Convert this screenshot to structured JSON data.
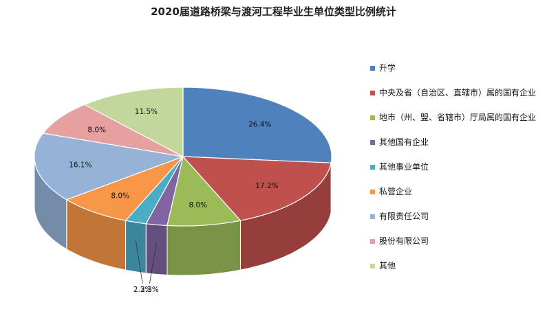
{
  "chart_data": {
    "type": "pie",
    "title": "2020届道路桥梁与渡河工程毕业生单位类型比例统计",
    "legend_position": "right",
    "style": "3d",
    "slices": [
      {
        "name": "升学",
        "value": 26.4,
        "label": "26.4%",
        "color": "#4F81BD"
      },
      {
        "name": "中央及省（自治区、直辖市）属的国有企业",
        "value": 17.2,
        "label": "17.2%",
        "color": "#C0504D"
      },
      {
        "name": "地市（州、盟、省辖市）厅局属的国有企业",
        "value": 8.0,
        "label": "8.0%",
        "color": "#9BBB59"
      },
      {
        "name": "其他国有企业",
        "value": 2.3,
        "label": "2.3%",
        "color": "#8064A2"
      },
      {
        "name": "其他事业单位",
        "value": 2.3,
        "label": "2.3%",
        "color": "#4BACC6"
      },
      {
        "name": "私营企业",
        "value": 8.0,
        "label": "8.0%",
        "color": "#F79646"
      },
      {
        "name": "有限责任公司",
        "value": 16.1,
        "label": "16.1%",
        "color": "#95B3D7"
      },
      {
        "name": "股份有限公司",
        "value": 8.0,
        "label": "8.0%",
        "color": "#E6A0A0"
      },
      {
        "name": "其他",
        "value": 11.5,
        "label": "11.5%",
        "color": "#C3D69B"
      }
    ]
  }
}
